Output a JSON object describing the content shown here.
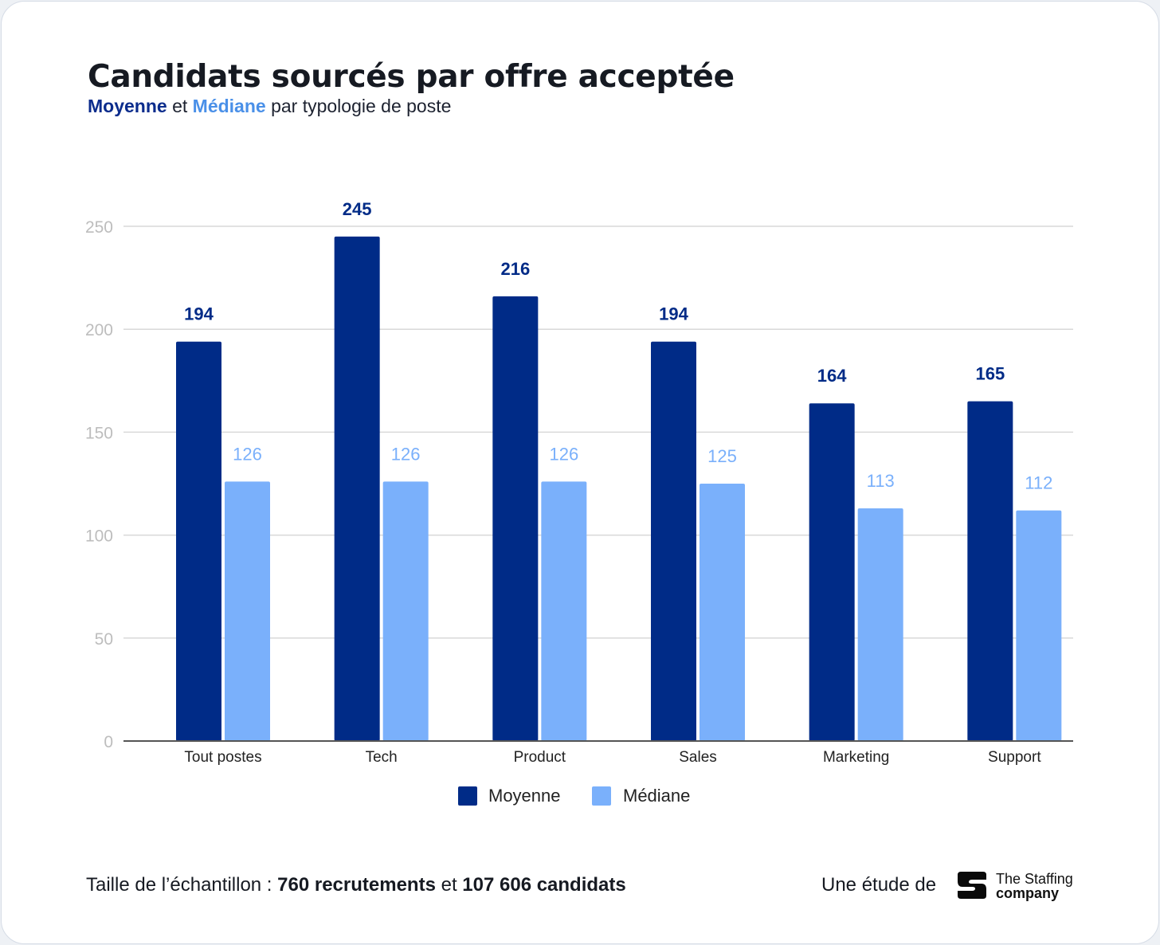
{
  "header": {
    "title": "Candidats sourcés par offre acceptée",
    "subtitle_a": "Moyenne",
    "subtitle_et": " et ",
    "subtitle_b": "Médiane",
    "subtitle_rest": " par typologie de poste"
  },
  "colors": {
    "moyenne": "#002b87",
    "mediane": "#7ab0fb",
    "grid": "#d9d9d9",
    "axis_text": "#bdbdbd"
  },
  "chart_data": {
    "type": "bar",
    "categories": [
      "Tout postes",
      "Tech",
      "Product",
      "Sales",
      "Marketing",
      "Support"
    ],
    "series": [
      {
        "name": "Moyenne",
        "values": [
          194,
          245,
          216,
          194,
          164,
          165
        ]
      },
      {
        "name": "Médiane",
        "values": [
          126,
          126,
          126,
          125,
          113,
          112
        ]
      }
    ],
    "yticks": [
      0,
      50,
      100,
      150,
      200,
      250
    ],
    "ylim": [
      0,
      250
    ],
    "grid": true,
    "legend": "bottom",
    "data_labels": true
  },
  "footer": {
    "sample_prefix": "Taille de l’échantillon : ",
    "sample_recruitments": "760 recrutements",
    "sample_et": " et ",
    "sample_candidates": "107 606 candidats",
    "study_by": "Une étude de",
    "logo_line1": "The Staffing",
    "logo_line2": "company"
  }
}
